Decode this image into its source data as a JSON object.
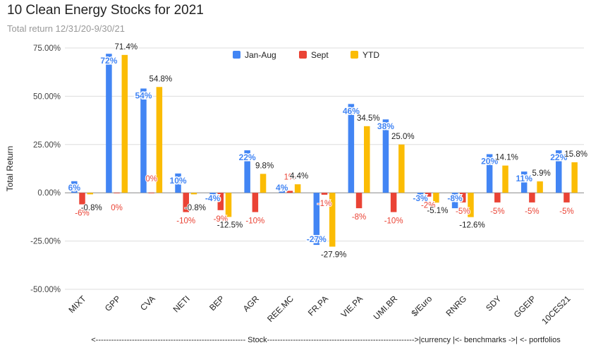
{
  "title": "10 Clean Energy Stocks for 2021",
  "subtitle": "Total return 12/31/20-9/30/21",
  "chart_data": {
    "type": "bar",
    "categories": [
      "MIXT",
      "GPP",
      "CVA",
      "NETI",
      "BEP",
      "AGR",
      "REE.MC",
      "FR.PA",
      "VIE.PA",
      "UMI.BR",
      "$/Euro",
      "RNRG",
      "SDY",
      "GGEIP",
      "10CES21"
    ],
    "series": [
      {
        "name": "Jan-Aug",
        "color": "#4285f4",
        "values": [
          6,
          72,
          54,
          10,
          -4,
          22,
          4,
          -27,
          46,
          38,
          -3,
          -8,
          20,
          11,
          22
        ],
        "labels": [
          "6%",
          "72%",
          "54%",
          "10%",
          "-4%",
          "22%",
          "4%",
          "-27%",
          "46%",
          "38%",
          "-3%",
          "-8%",
          "20%",
          "11%",
          "22%"
        ]
      },
      {
        "name": "Sept",
        "color": "#ea4335",
        "values": [
          -6,
          0,
          0,
          -10,
          -9,
          -10,
          1,
          -1,
          -8,
          -10,
          -2,
          -5,
          -5,
          -5,
          -5
        ],
        "labels": [
          "-6%",
          "0%",
          "0%",
          "-10%",
          "-9%",
          "-10%",
          "1%",
          "-1%",
          "-8%",
          "-10%",
          "-2%",
          "-5%",
          "-5%",
          "-5%",
          "-5%"
        ]
      },
      {
        "name": "YTD",
        "color": "#fbbc04",
        "values": [
          -0.8,
          71.4,
          54.8,
          -0.8,
          -12.5,
          9.8,
          4.4,
          -27.9,
          34.5,
          25.0,
          -5.1,
          -12.6,
          14.1,
          5.9,
          15.8
        ],
        "labels": [
          "-0.8%",
          "71.4%",
          "54.8%",
          "-0.8%",
          "-12.5%",
          "9.8%",
          "4.4%",
          "-27.9%",
          "34.5%",
          "25.0%",
          "-5.1%",
          "-12.6%",
          "14.1%",
          "5.9%",
          "15.8%"
        ]
      }
    ],
    "ylabel": "Total Return",
    "xlabel": "<---------------------------------------------------------- Stock--------------------------------------------------------->|currency |<- benchmarks ->| <- portfolios",
    "ylim": [
      -50,
      75
    ],
    "yticks": [
      75,
      50,
      25,
      0,
      -25,
      -50
    ],
    "ytick_labels": [
      "75.00%",
      "50.00%",
      "25.00%",
      "0.00%",
      "-25.00%",
      "-50.00%"
    ],
    "legend_position": "top-center",
    "grid": true
  }
}
